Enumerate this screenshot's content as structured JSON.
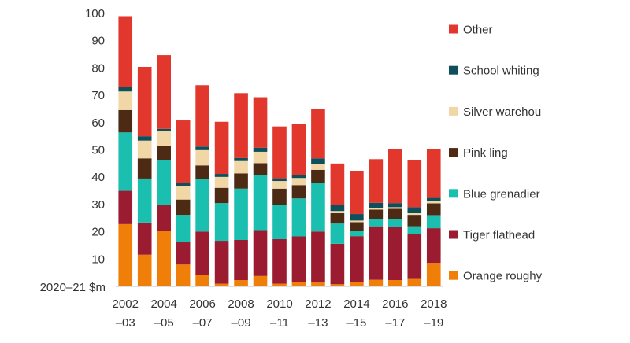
{
  "chart_data": {
    "type": "bar",
    "stacked": true,
    "ylabel": "2020–21 $m",
    "ylim": [
      0,
      100
    ],
    "yticks": [
      10,
      20,
      30,
      40,
      50,
      60,
      70,
      80,
      90,
      100
    ],
    "grid": false,
    "legend_position": "right",
    "categories": [
      "2002–03",
      "2003–04",
      "2004–05",
      "2005–06",
      "2006–07",
      "2007–08",
      "2008–09",
      "2009–10",
      "2010–11",
      "2011–12",
      "2012–13",
      "2013–14",
      "2014–15",
      "2015–16",
      "2016–17",
      "2017–18",
      "2018–19"
    ],
    "x_tick_labels": [
      {
        "year": "2002",
        "sub": "–03"
      },
      {
        "year": "2004",
        "sub": "–05"
      },
      {
        "year": "2006",
        "sub": "–07"
      },
      {
        "year": "2008",
        "sub": "–09"
      },
      {
        "year": "2010",
        "sub": "–11"
      },
      {
        "year": "2012",
        "sub": "–13"
      },
      {
        "year": "2014",
        "sub": "–15"
      },
      {
        "year": "2016",
        "sub": "–17"
      },
      {
        "year": "2018",
        "sub": "–19"
      }
    ],
    "series": [
      {
        "name": "Orange roughy",
        "color": "#f07f09",
        "values": [
          22.8,
          11.6,
          20.2,
          8.0,
          4.1,
          1.0,
          2.3,
          3.8,
          1.0,
          1.5,
          1.4,
          0.8,
          1.7,
          2.4,
          2.3,
          2.7,
          8.6
        ]
      },
      {
        "name": "Tiger flathead",
        "color": "#9b1b30",
        "values": [
          12.2,
          11.8,
          9.6,
          8.2,
          16.0,
          15.7,
          14.7,
          16.8,
          16.3,
          16.8,
          18.7,
          14.8,
          16.7,
          19.6,
          19.5,
          16.5,
          12.7
        ]
      },
      {
        "name": "Blue grenadier",
        "color": "#1abfb0",
        "values": [
          21.4,
          16.1,
          16.4,
          10.0,
          19.1,
          13.8,
          18.8,
          20.3,
          12.6,
          13.9,
          17.8,
          7.4,
          2.0,
          2.6,
          2.7,
          2.8,
          4.8
        ]
      },
      {
        "name": "Pink ling",
        "color": "#4d2a14",
        "values": [
          8.2,
          7.4,
          5.3,
          5.6,
          5.1,
          5.6,
          5.6,
          4.2,
          5.9,
          4.9,
          4.8,
          3.8,
          3.1,
          3.5,
          3.9,
          4.2,
          4.3
        ]
      },
      {
        "name": "Silver warehou",
        "color": "#f2d7a6",
        "values": [
          6.8,
          6.5,
          5.4,
          4.8,
          5.6,
          4.0,
          4.5,
          4.2,
          2.8,
          2.6,
          2.0,
          0.8,
          0.6,
          0.5,
          0.6,
          0.6,
          0.8
        ]
      },
      {
        "name": "School whiting",
        "color": "#0e4f5c",
        "values": [
          1.8,
          1.6,
          0.8,
          1.2,
          1.3,
          1.1,
          1.1,
          1.5,
          1.0,
          1.0,
          2.2,
          2.1,
          2.4,
          2.0,
          1.5,
          2.2,
          1.2
        ]
      },
      {
        "name": "Other",
        "color": "#e1372d",
        "values": [
          25.8,
          25.4,
          27.0,
          23.0,
          22.5,
          19.1,
          23.8,
          18.5,
          19.0,
          18.7,
          18.0,
          15.3,
          15.8,
          16.0,
          19.9,
          17.2,
          18.0
        ]
      }
    ]
  }
}
